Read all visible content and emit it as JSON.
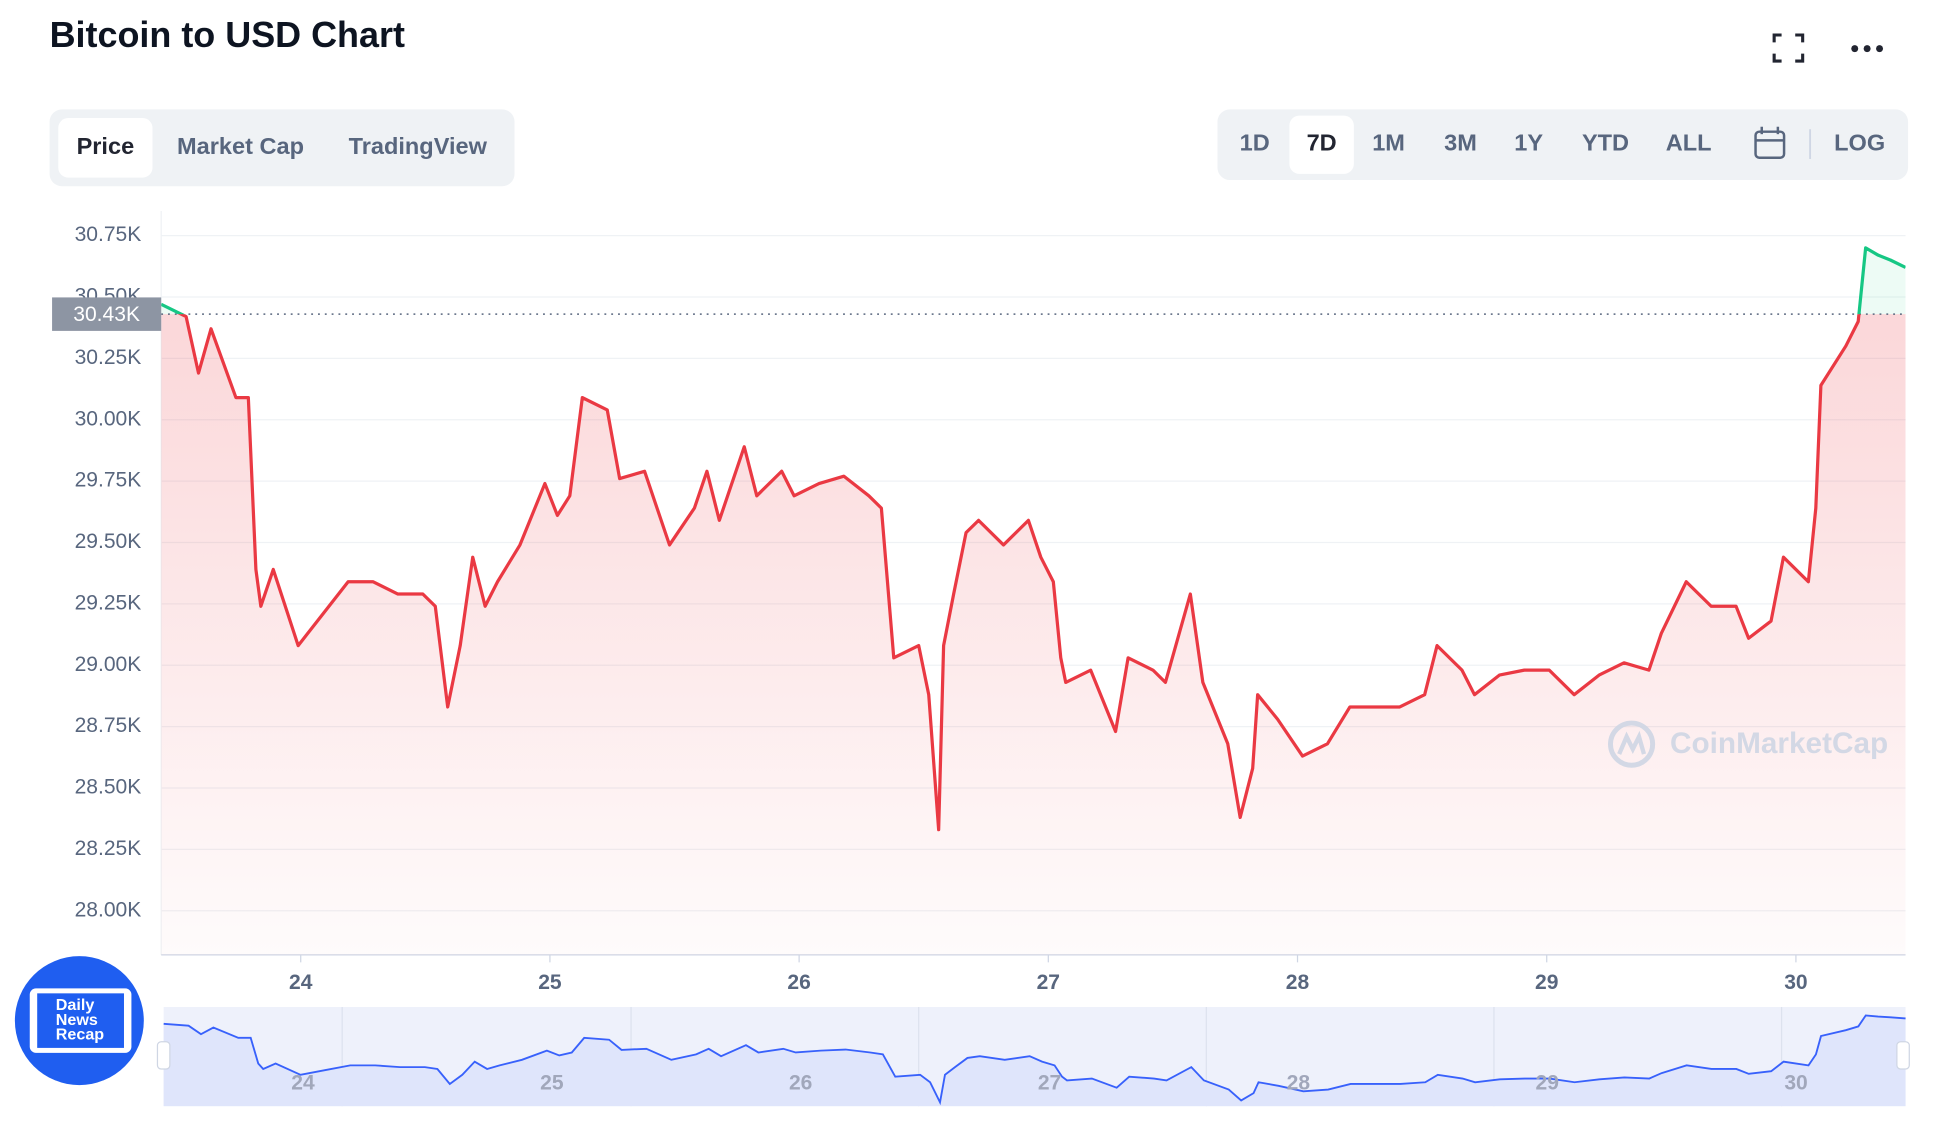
{
  "ui": {
    "title": "Bitcoin to USD Chart",
    "tabs": [
      "Price",
      "Market Cap",
      "TradingView"
    ],
    "ranges": [
      "1D",
      "7D",
      "1M",
      "3M",
      "1Y",
      "YTD",
      "ALL"
    ],
    "log_button": "LOG",
    "watermark": "CoinMarketCap",
    "logo": [
      "Daily",
      "News",
      "Recap"
    ]
  },
  "chart_data": {
    "type": "line",
    "color": "#ea3943",
    "up_color": "#16c784",
    "grid": true,
    "xlim": [
      23.44,
      30.44
    ],
    "xticks": [
      24,
      25,
      26,
      27,
      28,
      29,
      30
    ],
    "ylim": [
      27820,
      30850
    ],
    "yticks": [
      {
        "value": 28000,
        "label": "28.00K"
      },
      {
        "value": 28250,
        "label": "28.25K"
      },
      {
        "value": 28500,
        "label": "28.50K"
      },
      {
        "value": 28750,
        "label": "28.75K"
      },
      {
        "value": 29000,
        "label": "29.00K"
      },
      {
        "value": 29250,
        "label": "29.25K"
      },
      {
        "value": 29500,
        "label": "29.50K"
      },
      {
        "value": 29750,
        "label": "29.75K"
      },
      {
        "value": 30000,
        "label": "30.00K"
      },
      {
        "value": 30250,
        "label": "30.25K"
      },
      {
        "value": 30500,
        "label": "30.50K"
      },
      {
        "value": 30750,
        "label": "30.75K"
      }
    ],
    "reference_line": {
      "value": 30430,
      "label": "30.43K"
    },
    "x": [
      23.44,
      23.54,
      23.59,
      23.64,
      23.74,
      23.79,
      23.82,
      23.84,
      23.89,
      23.99,
      24.09,
      24.19,
      24.29,
      24.39,
      24.49,
      24.54,
      24.59,
      24.64,
      24.69,
      24.74,
      24.79,
      24.88,
      24.98,
      25.03,
      25.08,
      25.13,
      25.23,
      25.28,
      25.38,
      25.48,
      25.58,
      25.63,
      25.68,
      25.78,
      25.83,
      25.93,
      25.98,
      26.08,
      26.18,
      26.28,
      26.33,
      26.38,
      26.48,
      26.52,
      26.56,
      26.58,
      26.62,
      26.67,
      26.72,
      26.82,
      26.92,
      26.97,
      27.02,
      27.05,
      27.07,
      27.17,
      27.27,
      27.32,
      27.42,
      27.47,
      27.57,
      27.62,
      27.72,
      27.77,
      27.82,
      27.84,
      27.92,
      28.02,
      28.12,
      28.21,
      28.31,
      28.41,
      28.51,
      28.56,
      28.66,
      28.71,
      28.81,
      28.91,
      29.01,
      29.11,
      29.21,
      29.31,
      29.41,
      29.46,
      29.56,
      29.66,
      29.76,
      29.81,
      29.9,
      29.95,
      30.05,
      30.08,
      30.1,
      30.2,
      30.25,
      30.28,
      30.33,
      30.38,
      30.44
    ],
    "values": [
      30470,
      30420,
      30190,
      30370,
      30090,
      30090,
      29390,
      29240,
      29390,
      29080,
      29210,
      29340,
      29340,
      29290,
      29290,
      29240,
      28830,
      29080,
      29440,
      29240,
      29340,
      29490,
      29740,
      29610,
      29690,
      30090,
      30040,
      29760,
      29790,
      29490,
      29640,
      29790,
      29590,
      29890,
      29690,
      29790,
      29690,
      29740,
      29770,
      29690,
      29640,
      29030,
      29080,
      28880,
      28330,
      29080,
      29290,
      29540,
      29590,
      29490,
      29590,
      29440,
      29340,
      29030,
      28930,
      28980,
      28730,
      29030,
      28980,
      28930,
      29290,
      28930,
      28680,
      28380,
      28580,
      28880,
      28780,
      28630,
      28680,
      28830,
      28830,
      28830,
      28880,
      29080,
      28980,
      28880,
      28960,
      28980,
      28980,
      28880,
      28960,
      29010,
      28980,
      29130,
      29340,
      29240,
      29240,
      29110,
      29180,
      29440,
      29340,
      29640,
      30140,
      30300,
      30400,
      30700,
      30670,
      30650,
      30620
    ]
  }
}
